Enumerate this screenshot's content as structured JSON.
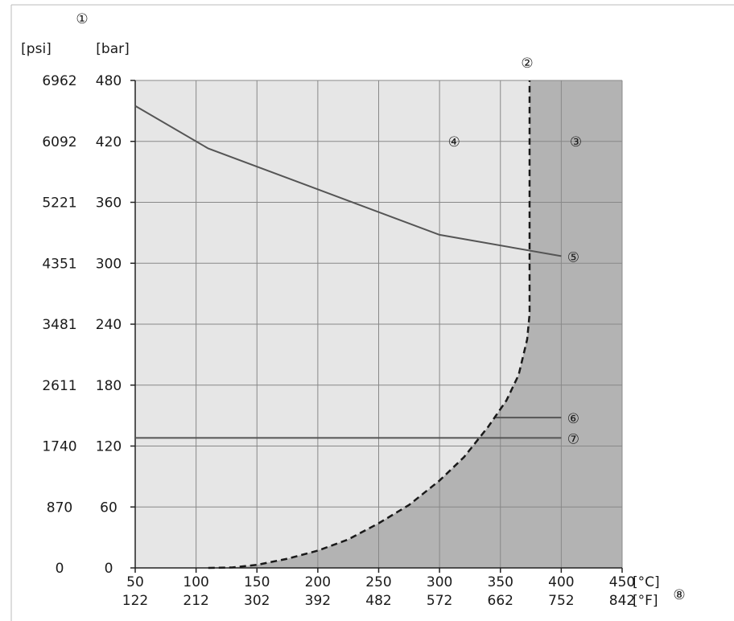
{
  "chart_data": {
    "type": "line",
    "x_axis": {
      "units": [
        "[°C]",
        "[°F]"
      ],
      "range": [
        50,
        450
      ],
      "ticks_c": [
        50,
        100,
        150,
        200,
        250,
        300,
        350,
        400,
        450
      ],
      "ticks_f": [
        122,
        212,
        302,
        392,
        482,
        572,
        662,
        752,
        842
      ],
      "marker": "⑧"
    },
    "y_axis": {
      "units": [
        "[psi]",
        "[bar]"
      ],
      "range": [
        0,
        480
      ],
      "ticks_bar": [
        0,
        60,
        120,
        180,
        240,
        300,
        360,
        420,
        480
      ],
      "ticks_psi": [
        0,
        870,
        1740,
        2611,
        3481,
        4351,
        5221,
        6092,
        6962
      ],
      "marker": "①"
    },
    "grid": true,
    "regions": [
      {
        "marker": "④",
        "color": "#e6e6e6"
      },
      {
        "marker": "③",
        "color": "#b3b3b3"
      }
    ],
    "boundary": {
      "marker": "②",
      "style": "dashed",
      "points": [
        [
          110,
          0
        ],
        [
          130,
          0.5
        ],
        [
          150,
          3
        ],
        [
          175,
          9
        ],
        [
          200,
          17
        ],
        [
          225,
          28
        ],
        [
          250,
          44
        ],
        [
          275,
          62
        ],
        [
          300,
          86
        ],
        [
          320,
          109
        ],
        [
          340,
          139
        ],
        [
          355,
          165
        ],
        [
          365,
          190
        ],
        [
          372,
          225
        ],
        [
          374,
          250
        ],
        [
          374,
          480
        ]
      ]
    },
    "series": [
      {
        "marker": "⑤",
        "points": [
          [
            50,
            455
          ],
          [
            110,
            413
          ],
          [
            300,
            328
          ],
          [
            400,
            307
          ]
        ]
      },
      {
        "marker": "⑥",
        "points": [
          [
            345,
            148
          ],
          [
            400,
            148
          ]
        ]
      },
      {
        "marker": "⑦",
        "points": [
          [
            50,
            128
          ],
          [
            400,
            128
          ]
        ]
      }
    ],
    "colors": {
      "line": "#555555",
      "grid": "#888888",
      "dashed": "#1a1a1a"
    }
  }
}
